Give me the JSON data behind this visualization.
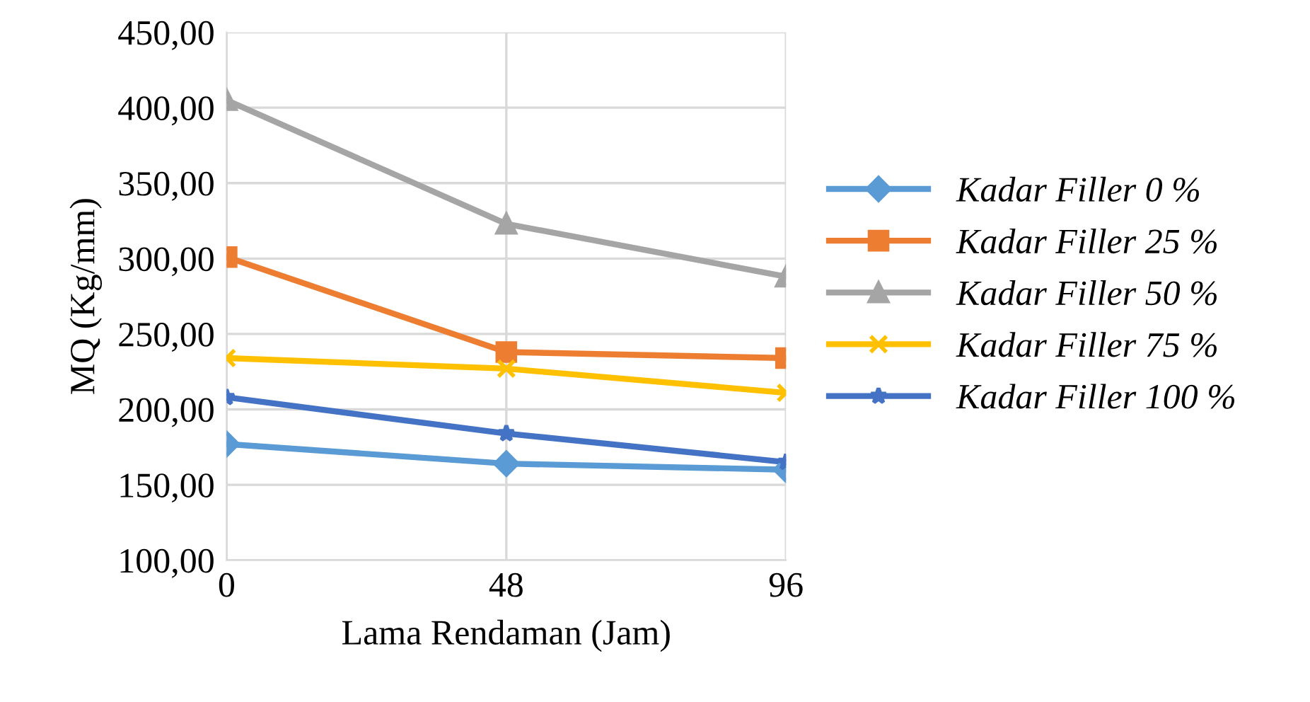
{
  "chart_data": {
    "type": "line",
    "xlabel": "Lama Rendaman (Jam)",
    "ylabel": "MQ (Kg/mm)",
    "x": [
      0,
      48,
      96
    ],
    "series": [
      {
        "name": "Kadar Filler 0 %",
        "color": "#5b9bd5",
        "marker": "diamond",
        "values": [
          177,
          164,
          160
        ]
      },
      {
        "name": "Kadar Filler 25 %",
        "color": "#ed7d31",
        "marker": "square",
        "values": [
          301,
          238,
          234
        ]
      },
      {
        "name": "Kadar Filler 50 %",
        "color": "#a5a5a5",
        "marker": "triangle",
        "values": [
          405,
          323,
          288
        ]
      },
      {
        "name": "Kadar Filler 75 %",
        "color": "#ffc000",
        "marker": "cross",
        "values": [
          234,
          227,
          211
        ]
      },
      {
        "name": "Kadar Filler 100 %",
        "color": "#4472c4",
        "marker": "star",
        "values": [
          208,
          184,
          165
        ]
      }
    ],
    "xlim": [
      0,
      96
    ],
    "xticks": [
      0,
      48,
      96
    ],
    "ylim": [
      100,
      450
    ],
    "yticks": [
      {
        "value": 100,
        "label": "100,00"
      },
      {
        "value": 150,
        "label": "150,00"
      },
      {
        "value": 200,
        "label": "200,00"
      },
      {
        "value": 250,
        "label": "250,00"
      },
      {
        "value": 300,
        "label": "300,00"
      },
      {
        "value": 350,
        "label": "350,00"
      },
      {
        "value": 400,
        "label": "400,00"
      },
      {
        "value": 450,
        "label": "450,00"
      }
    ],
    "grid": true,
    "legend": "right",
    "line_style": "solid"
  }
}
